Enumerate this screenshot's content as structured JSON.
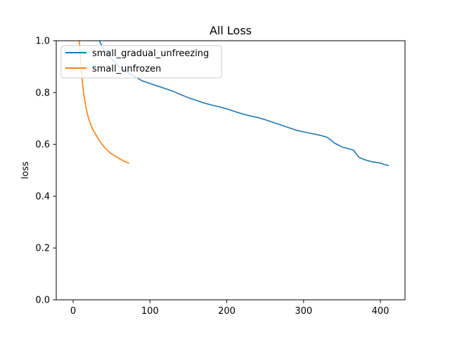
{
  "chart_data": {
    "type": "line",
    "title": "All Loss",
    "xlabel": "",
    "ylabel": "loss",
    "xlim": [
      -22,
      432
    ],
    "ylim": [
      0.0,
      1.0
    ],
    "xticks": [
      0,
      100,
      200,
      300,
      400
    ],
    "xtick_labels": [
      "0",
      "100",
      "200",
      "300",
      "400"
    ],
    "yticks": [
      0.0,
      0.2,
      0.4,
      0.6,
      0.8,
      1.0
    ],
    "ytick_labels": [
      "0.0",
      "0.2",
      "0.4",
      "0.6",
      "0.8",
      "1.0"
    ],
    "grid": false,
    "legend_position": "upper-left",
    "series": [
      {
        "name": "small_gradual_unfreezing",
        "color": "#1f77b4",
        "x": [
          34,
          40,
          50,
          60,
          75,
          90,
          100,
          110,
          120,
          130,
          140,
          150,
          160,
          170,
          180,
          190,
          200,
          210,
          220,
          230,
          240,
          250,
          260,
          270,
          280,
          290,
          300,
          310,
          320,
          330,
          335,
          340,
          345,
          350,
          360,
          365,
          368,
          372,
          380,
          390,
          400,
          405,
          411
        ],
        "y": [
          1.0,
          0.965,
          0.93,
          0.9,
          0.87,
          0.845,
          0.835,
          0.825,
          0.815,
          0.805,
          0.792,
          0.78,
          0.77,
          0.76,
          0.752,
          0.745,
          0.737,
          0.727,
          0.718,
          0.71,
          0.704,
          0.695,
          0.685,
          0.675,
          0.665,
          0.655,
          0.648,
          0.642,
          0.636,
          0.628,
          0.618,
          0.605,
          0.598,
          0.59,
          0.582,
          0.578,
          0.565,
          0.55,
          0.54,
          0.532,
          0.528,
          0.522,
          0.518
        ]
      },
      {
        "name": "small_unfrozen",
        "color": "#ff7f0e",
        "x": [
          8,
          9,
          10,
          12,
          14,
          16,
          18,
          20,
          23,
          26,
          30,
          34,
          38,
          42,
          46,
          50,
          55,
          60,
          65,
          70,
          73
        ],
        "y": [
          1.0,
          0.955,
          0.91,
          0.84,
          0.79,
          0.755,
          0.725,
          0.7,
          0.675,
          0.655,
          0.635,
          0.615,
          0.598,
          0.585,
          0.573,
          0.563,
          0.555,
          0.545,
          0.537,
          0.53,
          0.528
        ]
      }
    ]
  }
}
